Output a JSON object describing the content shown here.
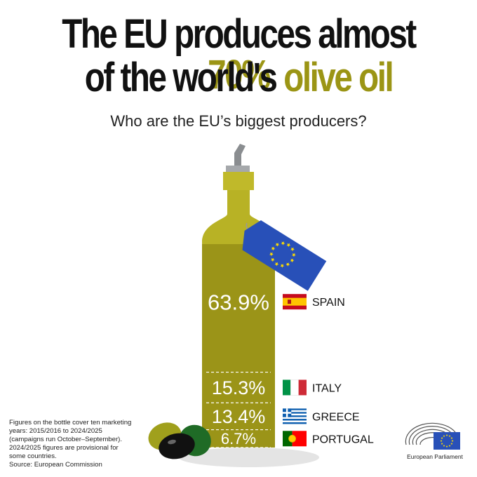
{
  "title_line1": "The EU produces almost ",
  "title_line1_highlight": "70%",
  "title_line2": "of the world's ",
  "title_line2_highlight": "olive oil",
  "subtitle": "Who are the EU’s biggest producers?",
  "chart_data": {
    "type": "bar",
    "categories": [
      "SPAIN",
      "ITALY",
      "GREECE",
      "PORTUGAL"
    ],
    "values": [
      63.9,
      15.3,
      13.4,
      6.7
    ],
    "value_labels": [
      "63.9%",
      "15.3%",
      "13.4%",
      "6.7%"
    ],
    "unit": "%",
    "flags": [
      "spain-flag-icon",
      "italy-flag-icon",
      "greece-flag-icon",
      "portugal-flag-icon"
    ]
  },
  "footnote": [
    "Figures on the bottle cover ten marketing",
    "years: 2015/2016 to 2024/2025",
    "(campaigns run October–September).",
    "2024/2025 figures are provisional for",
    "some countries.",
    "Source: European Commission"
  ],
  "brand": "European Parliament",
  "colors": {
    "title_highlight": "#9b9515",
    "oil": "#9b9418",
    "bottle_top": "#b8b225",
    "cap": "#c0b92a",
    "eu_blue": "#2850b8",
    "eu_star": "#ffdd00"
  }
}
